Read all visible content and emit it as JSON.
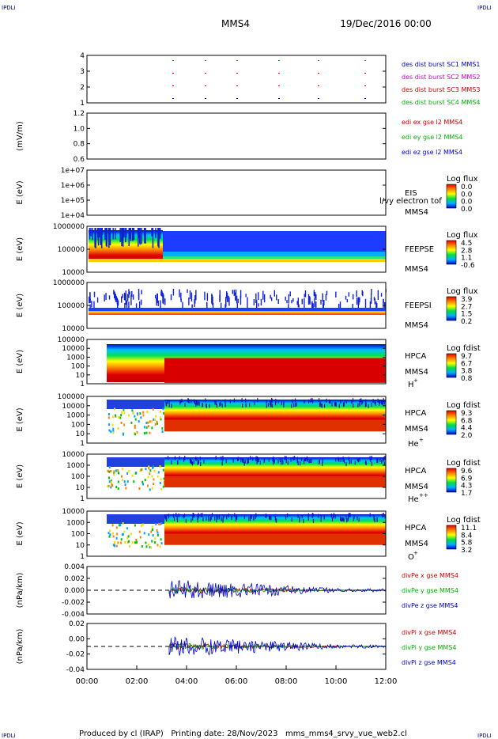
{
  "header": {
    "corner_left": "IPDLI",
    "corner_right": "IPDLI",
    "spacecraft": "MMS4",
    "date": "19/Dec/2016 00:00"
  },
  "footer": {
    "text": "Produced by cl (IRAP)   Printing date: 28/Nov/2023   mms_mms4_srvy_vue_web2.cl",
    "corner_left": "IPDLI",
    "corner_right": "IPDLI"
  },
  "chart_data": {
    "type": "multi-panel time series",
    "x_ticks": [
      "00:00",
      "02:00",
      "04:00",
      "06:00",
      "08:00",
      "10:00",
      "12:00"
    ],
    "panels": [
      {
        "id": "des",
        "ylabel": "",
        "yticks": [
          "4",
          "3",
          "2",
          "1"
        ],
        "legend": [
          {
            "text": "des dist burst SC1 MMS1",
            "color": "#0000c8"
          },
          {
            "text": "des dist burst SC2 MMS2",
            "color": "#c800c8"
          },
          {
            "text": "des dist burst SC3 MMS3",
            "color": "#d00000"
          },
          {
            "text": "des dist burst SC4 MMS4",
            "color": "#00b000"
          }
        ]
      },
      {
        "id": "edi",
        "ylabel": "(mV/m)",
        "yticks": [
          "1.2",
          "1.0",
          "0.8",
          "0.6"
        ],
        "legend": [
          {
            "text": "edi ex gse l2 MMS4",
            "color": "#d00000"
          },
          {
            "text": "edi ey gse l2 MMS4",
            "color": "#00b000"
          },
          {
            "text": "edi ez gse l2 MMS4",
            "color": "#0000c8"
          }
        ]
      },
      {
        "id": "eis",
        "ylabel": "E (eV)",
        "yticks": [
          "1e+07",
          "1e+06",
          "1e+05",
          "1e+04"
        ],
        "labels": [
          "EIS",
          "MMS4"
        ],
        "overlay": "l/vy electron tof",
        "colorbar_title": "Log flux",
        "colorbar_ticks": [
          "0.0",
          "0.0",
          "0.0",
          "0.0"
        ]
      },
      {
        "id": "feepse",
        "ylabel": "E (eV)",
        "yticks": [
          "1000000",
          "100000",
          "10000"
        ],
        "labels": [
          "FEEPSE",
          "MMS4"
        ],
        "colorbar_title": "Log flux",
        "colorbar_ticks": [
          "4.5",
          "2.8",
          "1.1",
          "-0.6"
        ]
      },
      {
        "id": "feepsi",
        "ylabel": "E (eV)",
        "yticks": [
          "1000000",
          "100000",
          "10000"
        ],
        "labels": [
          "FEEPSI",
          "MMS4"
        ],
        "colorbar_title": "Log flux",
        "colorbar_ticks": [
          "3.9",
          "2.7",
          "1.5",
          "0.2"
        ]
      },
      {
        "id": "hpca_h",
        "ylabel": "E (eV)",
        "yticks": [
          "100000",
          "10000",
          "1000",
          "100",
          "10",
          "1"
        ],
        "labels": [
          "HPCA",
          "MMS4"
        ],
        "species": "H",
        "species_sup": "+",
        "colorbar_title": "Log fdist",
        "colorbar_ticks": [
          "9.7",
          "6.7",
          "3.8",
          "0.8"
        ]
      },
      {
        "id": "hpca_he",
        "ylabel": "E (eV)",
        "yticks": [
          "100000",
          "10000",
          "1000",
          "100",
          "10",
          "1"
        ],
        "labels": [
          "HPCA",
          "MMS4"
        ],
        "species": "He",
        "species_sup": "+",
        "colorbar_title": "Log fdist",
        "colorbar_ticks": [
          "9.3",
          "6.8",
          "4.4",
          "2.0"
        ]
      },
      {
        "id": "hpca_hepp",
        "ylabel": "E (eV)",
        "yticks": [
          "10000",
          "1000",
          "100",
          "10",
          "1"
        ],
        "labels": [
          "HPCA",
          "MMS4"
        ],
        "species": "He",
        "species_sup": "++",
        "colorbar_title": "Log fdist",
        "colorbar_ticks": [
          "9.6",
          "6.9",
          "4.3",
          "1.7"
        ]
      },
      {
        "id": "hpca_o",
        "ylabel": "E (eV)",
        "yticks": [
          "10000",
          "1000",
          "100",
          "10",
          "1"
        ],
        "labels": [
          "HPCA",
          "MMS4"
        ],
        "species": "O",
        "species_sup": "+",
        "colorbar_title": "Log fdist",
        "colorbar_ticks": [
          "11.1",
          "8.4",
          "5.8",
          "3.2"
        ]
      },
      {
        "id": "divpe",
        "ylabel": "(nPa/km)",
        "yticks": [
          "0.004",
          "0.002",
          "0.000",
          "-0.002",
          "-0.004"
        ],
        "legend": [
          {
            "text": "divPe x gse MMS4",
            "color": "#d00000"
          },
          {
            "text": "divPe y gse MMS4",
            "color": "#00b000"
          },
          {
            "text": "divPe z gse MMS4",
            "color": "#0000c8"
          }
        ]
      },
      {
        "id": "divpi",
        "ylabel": "(nPa/km)",
        "yticks": [
          "0.02",
          "0.00",
          "-0.02",
          "-0.04"
        ],
        "legend": [
          {
            "text": "divPi x gse MMS4",
            "color": "#d00000"
          },
          {
            "text": "divPi y gse MMS4",
            "color": "#00b000"
          },
          {
            "text": "divPi z gse MMS4",
            "color": "#0000c8"
          }
        ]
      }
    ]
  }
}
